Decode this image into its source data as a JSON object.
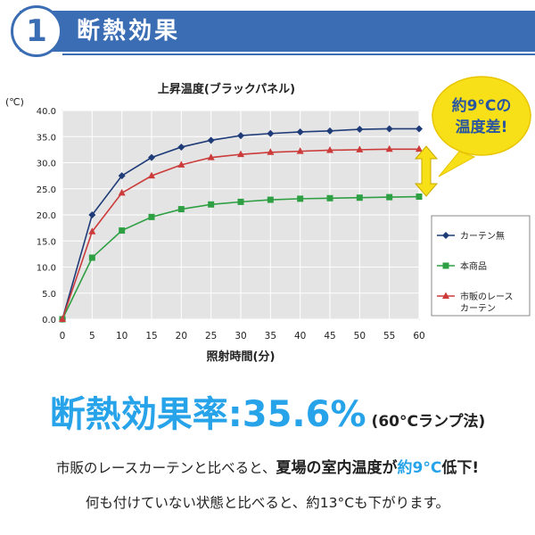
{
  "header": {
    "step_number": "1",
    "title": "断熱効果"
  },
  "chart_data": {
    "type": "line",
    "title": "上昇温度(ブラックパネル)",
    "ylabel": "(℃)",
    "xlabel": "照射時間(分)",
    "x": [
      0,
      5,
      10,
      15,
      20,
      25,
      30,
      35,
      40,
      45,
      50,
      55,
      60
    ],
    "x_tick_labels": [
      "0",
      "5",
      "10",
      "15",
      "20",
      "25",
      "30",
      "35",
      "40",
      "45",
      "50",
      "55",
      "60"
    ],
    "ylim": [
      0,
      40
    ],
    "y_ticks": [
      0,
      5,
      10,
      15,
      20,
      25,
      30,
      35,
      40
    ],
    "y_tick_labels": [
      "0.0",
      "5.0",
      "10.0",
      "15.0",
      "20.0",
      "25.0",
      "30.0",
      "35.0",
      "40.0"
    ],
    "grid": true,
    "legend_position": "right",
    "series": [
      {
        "name": "カーテン無",
        "color": "#1f3c78",
        "marker": "diamond",
        "values": [
          0,
          20.0,
          27.5,
          31.0,
          33.0,
          34.3,
          35.2,
          35.6,
          35.9,
          36.1,
          36.4,
          36.5,
          36.5
        ]
      },
      {
        "name": "本商品",
        "color": "#2ea043",
        "marker": "square",
        "values": [
          0,
          11.8,
          17.0,
          19.6,
          21.1,
          22.0,
          22.5,
          22.9,
          23.1,
          23.2,
          23.3,
          23.4,
          23.5
        ]
      },
      {
        "name": "市販のレース\nカーテン",
        "color": "#cc3a3a",
        "marker": "triangle",
        "values": [
          0,
          16.8,
          24.2,
          27.5,
          29.6,
          31.0,
          31.6,
          32.0,
          32.2,
          32.4,
          32.5,
          32.6,
          32.6
        ]
      }
    ],
    "callout": {
      "text_line1": "約9°Cの",
      "text_line2": "温度差!"
    }
  },
  "rate": {
    "label": "断熱効果率:",
    "value": "35.6%",
    "note": "(60°Cランプ法)"
  },
  "notes": {
    "line1_a": "市販のレースカーテンと比べると、",
    "line1_b": "夏場の室内温度が",
    "line1_c": "約9°C",
    "line1_d": "低下!",
    "line2": "何も付けていない状態と比べると、約13°Cも下がります。"
  }
}
